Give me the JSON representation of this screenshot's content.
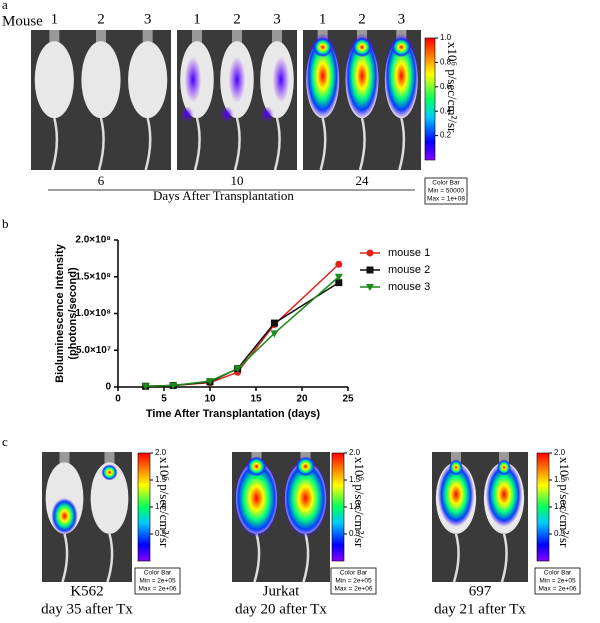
{
  "panel_a": {
    "label": "a",
    "mouse_label": "Mouse",
    "mouse_numbers": [
      "1",
      "2",
      "3"
    ],
    "days": [
      "6",
      "10",
      "24"
    ],
    "xlabel": "Days After Transplantation",
    "colorbar": {
      "ticks": [
        "1.0",
        "0.8",
        "0.6",
        "0.4",
        "0.2"
      ],
      "unit": "x10⁶ p/sec/cm²/sr",
      "box": [
        "Color Bar",
        "Min = 50000",
        "Max = 1e+08"
      ]
    }
  },
  "chart_data": {
    "type": "line",
    "label": "b",
    "ylabel": [
      "Bioluminescence Intensity",
      "(photons/second)"
    ],
    "xlabel": "Time After Transplantation (days)",
    "x": [
      3,
      6,
      10,
      13,
      17,
      24
    ],
    "series": [
      {
        "name": "mouse 1",
        "color": "#e3221c",
        "marker": "circle",
        "values": [
          1000000,
          2000000,
          6000000,
          20000000,
          85000000,
          167000000
        ]
      },
      {
        "name": "mouse 2",
        "color": "#111111",
        "marker": "square",
        "values": [
          1000000,
          2000000,
          7000000,
          25000000,
          87000000,
          142000000
        ]
      },
      {
        "name": "mouse 3",
        "color": "#1a8a1a",
        "marker": "triangle-down",
        "values": [
          1000000,
          2000000,
          8000000,
          25000000,
          73000000,
          150000000
        ]
      }
    ],
    "xlim": [
      0,
      25
    ],
    "xticks": [
      0,
      5,
      10,
      15,
      20,
      25
    ],
    "ylim": [
      0,
      200000000
    ],
    "yticks": [
      0,
      {
        "value": 50000000,
        "label": "5.0×10⁷"
      },
      {
        "value": 100000000,
        "label": "1.0×10⁸"
      },
      {
        "value": 150000000,
        "label": "1.5×10⁸"
      },
      {
        "value": 200000000,
        "label": "2.0×10⁸"
      }
    ],
    "legend": "right"
  },
  "panel_c": {
    "label": "c",
    "lines": [
      {
        "name": "K562",
        "caption": "day 35 after Tx"
      },
      {
        "name": "Jurkat",
        "caption": "day 20 after Tx"
      },
      {
        "name": "697",
        "caption": "day 21 after Tx"
      }
    ],
    "colorbar": {
      "ticks": [
        "2.0",
        "1.5",
        "1.0",
        "0.5"
      ],
      "unit": "x10⁶ p/sec/cm²/sr",
      "box": [
        "Color Bar",
        "Min = 2e+05",
        "Max = 2e+06"
      ]
    }
  }
}
